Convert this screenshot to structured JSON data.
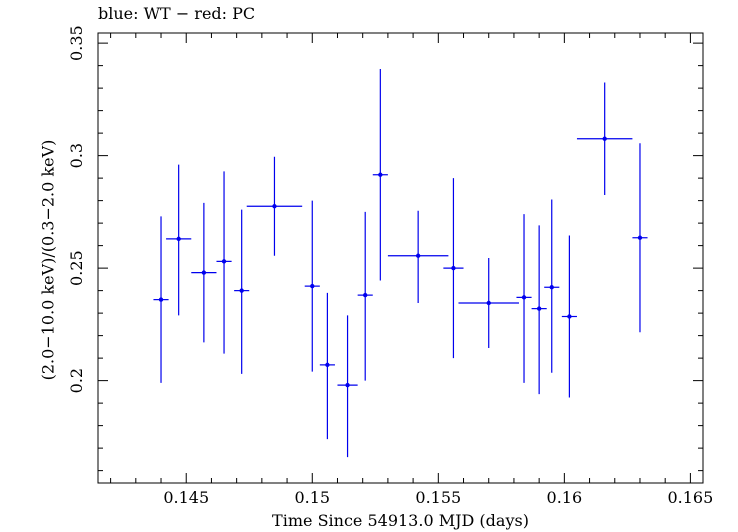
{
  "chart_data": {
    "type": "scatter",
    "title": "blue: WT − red: PC",
    "xlabel": "Time Since 54913.0 MJD (days)",
    "ylabel": "(2.0−10.0 keV)/(0.3−2.0 keV)",
    "xlim": [
      0.1415,
      0.1655
    ],
    "ylim": [
      0.1545,
      0.3545
    ],
    "xticks": [
      0.145,
      0.15,
      0.155,
      0.16,
      0.165
    ],
    "xtick_labels": [
      "0.145",
      "0.15",
      "0.155",
      "0.16",
      "0.165"
    ],
    "yticks": [
      0.2,
      0.25,
      0.3,
      0.35
    ],
    "ytick_labels": [
      "0.2",
      "0.25",
      "0.3",
      "0.35"
    ],
    "color": "#0000ee",
    "grid": false,
    "series": [
      {
        "name": "WT",
        "points": [
          {
            "x": 0.144,
            "xerr": 0.0003,
            "y": 0.236,
            "yerr_lo": 0.037,
            "yerr_hi": 0.037
          },
          {
            "x": 0.1447,
            "xerr": 0.0005,
            "y": 0.263,
            "yerr_lo": 0.034,
            "yerr_hi": 0.033
          },
          {
            "x": 0.1457,
            "xerr": 0.0005,
            "y": 0.248,
            "yerr_lo": 0.031,
            "yerr_hi": 0.031
          },
          {
            "x": 0.1465,
            "xerr": 0.0003,
            "y": 0.253,
            "yerr_lo": 0.041,
            "yerr_hi": 0.04
          },
          {
            "x": 0.1472,
            "xerr": 0.0003,
            "y": 0.24,
            "yerr_lo": 0.037,
            "yerr_hi": 0.036
          },
          {
            "x": 0.1485,
            "xerr": 0.0011,
            "y": 0.2775,
            "yerr_lo": 0.022,
            "yerr_hi": 0.022
          },
          {
            "x": 0.15,
            "xerr": 0.0003,
            "y": 0.242,
            "yerr_lo": 0.038,
            "yerr_hi": 0.038
          },
          {
            "x": 0.1506,
            "xerr": 0.0003,
            "y": 0.207,
            "yerr_lo": 0.033,
            "yerr_hi": 0.032
          },
          {
            "x": 0.1514,
            "xerr": 0.0004,
            "y": 0.198,
            "yerr_lo": 0.032,
            "yerr_hi": 0.031
          },
          {
            "x": 0.1521,
            "xerr": 0.0003,
            "y": 0.238,
            "yerr_lo": 0.038,
            "yerr_hi": 0.037
          },
          {
            "x": 0.1527,
            "xerr": 0.0003,
            "y": 0.2915,
            "yerr_lo": 0.047,
            "yerr_hi": 0.047
          },
          {
            "x": 0.1542,
            "xerr": 0.0012,
            "y": 0.2555,
            "yerr_lo": 0.021,
            "yerr_hi": 0.02
          },
          {
            "x": 0.1556,
            "xerr": 0.0004,
            "y": 0.25,
            "yerr_lo": 0.04,
            "yerr_hi": 0.04
          },
          {
            "x": 0.157,
            "xerr": 0.0012,
            "y": 0.2345,
            "yerr_lo": 0.02,
            "yerr_hi": 0.02
          },
          {
            "x": 0.1584,
            "xerr": 0.0003,
            "y": 0.237,
            "yerr_lo": 0.038,
            "yerr_hi": 0.037
          },
          {
            "x": 0.159,
            "xerr": 0.0003,
            "y": 0.232,
            "yerr_lo": 0.038,
            "yerr_hi": 0.037
          },
          {
            "x": 0.1595,
            "xerr": 0.0003,
            "y": 0.2415,
            "yerr_lo": 0.038,
            "yerr_hi": 0.039
          },
          {
            "x": 0.1602,
            "xerr": 0.0003,
            "y": 0.2285,
            "yerr_lo": 0.036,
            "yerr_hi": 0.036
          },
          {
            "x": 0.1616,
            "xerr": 0.0011,
            "y": 0.3075,
            "yerr_lo": 0.025,
            "yerr_hi": 0.025
          },
          {
            "x": 0.163,
            "xerr": 0.0003,
            "y": 0.2635,
            "yerr_lo": 0.042,
            "yerr_hi": 0.042
          }
        ]
      }
    ]
  }
}
